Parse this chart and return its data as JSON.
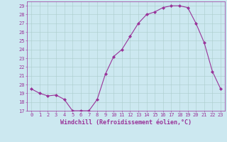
{
  "x": [
    0,
    1,
    2,
    3,
    4,
    5,
    6,
    7,
    8,
    9,
    10,
    11,
    12,
    13,
    14,
    15,
    16,
    17,
    18,
    19,
    20,
    21,
    22,
    23
  ],
  "y": [
    19.5,
    19.0,
    18.7,
    18.8,
    18.3,
    17.0,
    17.0,
    17.0,
    18.3,
    21.2,
    23.2,
    24.0,
    25.5,
    27.0,
    28.0,
    28.3,
    28.8,
    29.0,
    29.0,
    28.8,
    27.0,
    24.8,
    21.5,
    19.5
  ],
  "line_color": "#993399",
  "marker": "D",
  "marker_size": 2.0,
  "bg_color": "#cce8f0",
  "grid_color": "#aacccc",
  "xlabel": "Windchill (Refroidissement éolien,°C)",
  "ylim": [
    17,
    29.5
  ],
  "xlim": [
    -0.5,
    23.5
  ],
  "yticks": [
    17,
    18,
    19,
    20,
    21,
    22,
    23,
    24,
    25,
    26,
    27,
    28,
    29
  ],
  "xticks": [
    0,
    1,
    2,
    3,
    4,
    5,
    6,
    7,
    8,
    9,
    10,
    11,
    12,
    13,
    14,
    15,
    16,
    17,
    18,
    19,
    20,
    21,
    22,
    23
  ],
  "tick_color": "#993399",
  "label_fontsize": 6.0,
  "tick_fontsize": 5.0
}
